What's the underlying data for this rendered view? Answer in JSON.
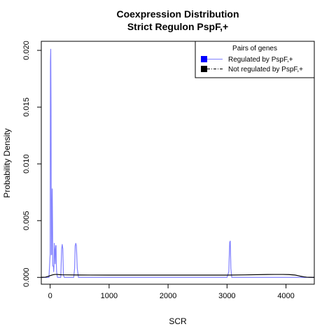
{
  "chart_data": {
    "type": "line",
    "title": "Coexpression Distribution",
    "subtitle": "Strict Regulon PspF,+",
    "xlabel": "SCR",
    "ylabel": "Probability Density",
    "xlim": [
      -150,
      4480
    ],
    "ylim": [
      -0.0006,
      0.0208
    ],
    "xticks": [
      0,
      1000,
      2000,
      3000,
      4000
    ],
    "xtick_labels": [
      "0",
      "1000",
      "2000",
      "3000",
      "4000"
    ],
    "yticks": [
      0.0,
      0.005,
      0.01,
      0.015,
      0.02
    ],
    "ytick_labels": [
      "0.000",
      "0.005",
      "0.010",
      "0.015",
      "0.020"
    ],
    "grid": false,
    "legend": {
      "title": "Pairs of genes",
      "position": "top-right",
      "entries": [
        {
          "label": "Regulated by  PspF,+",
          "color": "#0000ff",
          "line": "#8080ff"
        },
        {
          "label": "Not regulated by  PspF,+",
          "color": "#000000",
          "line": "#000000"
        }
      ]
    },
    "series": [
      {
        "name": "Regulated by  PspF,+",
        "color": "#8080ff",
        "x": [
          -150,
          -20,
          -10,
          0,
          5,
          10,
          15,
          20,
          25,
          30,
          35,
          40,
          45,
          50,
          55,
          60,
          65,
          70,
          75,
          80,
          85,
          90,
          95,
          100,
          105,
          110,
          115,
          120,
          125,
          130,
          140,
          150,
          160,
          180,
          195,
          205,
          215,
          225,
          240,
          260,
          300,
          380,
          400,
          415,
          425,
          435,
          445,
          460,
          480,
          700,
          1000,
          2000,
          3000,
          3030,
          3045,
          3055,
          3065,
          3080,
          3100,
          4480
        ],
        "y": [
          0,
          0,
          0.001,
          0.002,
          0.019,
          0.0201,
          0.015,
          0.002,
          0.002,
          0.006,
          0.0078,
          0.005,
          0.001,
          0.001,
          0.001,
          0.0005,
          0.001,
          0.003,
          0.0025,
          0.002,
          0.0012,
          0.0025,
          0.0028,
          0.0028,
          0.0012,
          0.0005,
          0.0003,
          0.0001,
          0,
          0,
          0,
          0,
          0,
          0,
          0.0025,
          0.0029,
          0.0025,
          0.0002,
          0,
          0,
          0,
          0,
          0,
          0.0008,
          0.0028,
          0.003,
          0.0028,
          0.0008,
          0,
          0,
          0,
          0,
          0,
          0.0005,
          0.0031,
          0.0032,
          0.0008,
          0,
          0,
          0
        ]
      },
      {
        "name": "Not regulated by  PspF,+",
        "color": "#000000",
        "x": [
          -150,
          -80,
          -40,
          0,
          40,
          80,
          120,
          160,
          200,
          300,
          500,
          1000,
          1500,
          2000,
          2500,
          3000,
          3300,
          3600,
          3800,
          3950,
          4050,
          4150,
          4200,
          4250,
          4300,
          4350,
          4400,
          4480
        ],
        "y": [
          0,
          2e-05,
          8e-05,
          0.00015,
          0.00022,
          0.00026,
          0.00026,
          0.00024,
          0.00023,
          0.00022,
          0.00021,
          0.0002,
          0.0002,
          0.0002,
          0.0002,
          0.0002,
          0.00022,
          0.00025,
          0.00026,
          0.00026,
          0.00025,
          0.00021,
          0.00016,
          0.0001,
          5e-05,
          2e-05,
          1e-05,
          0
        ]
      }
    ]
  }
}
